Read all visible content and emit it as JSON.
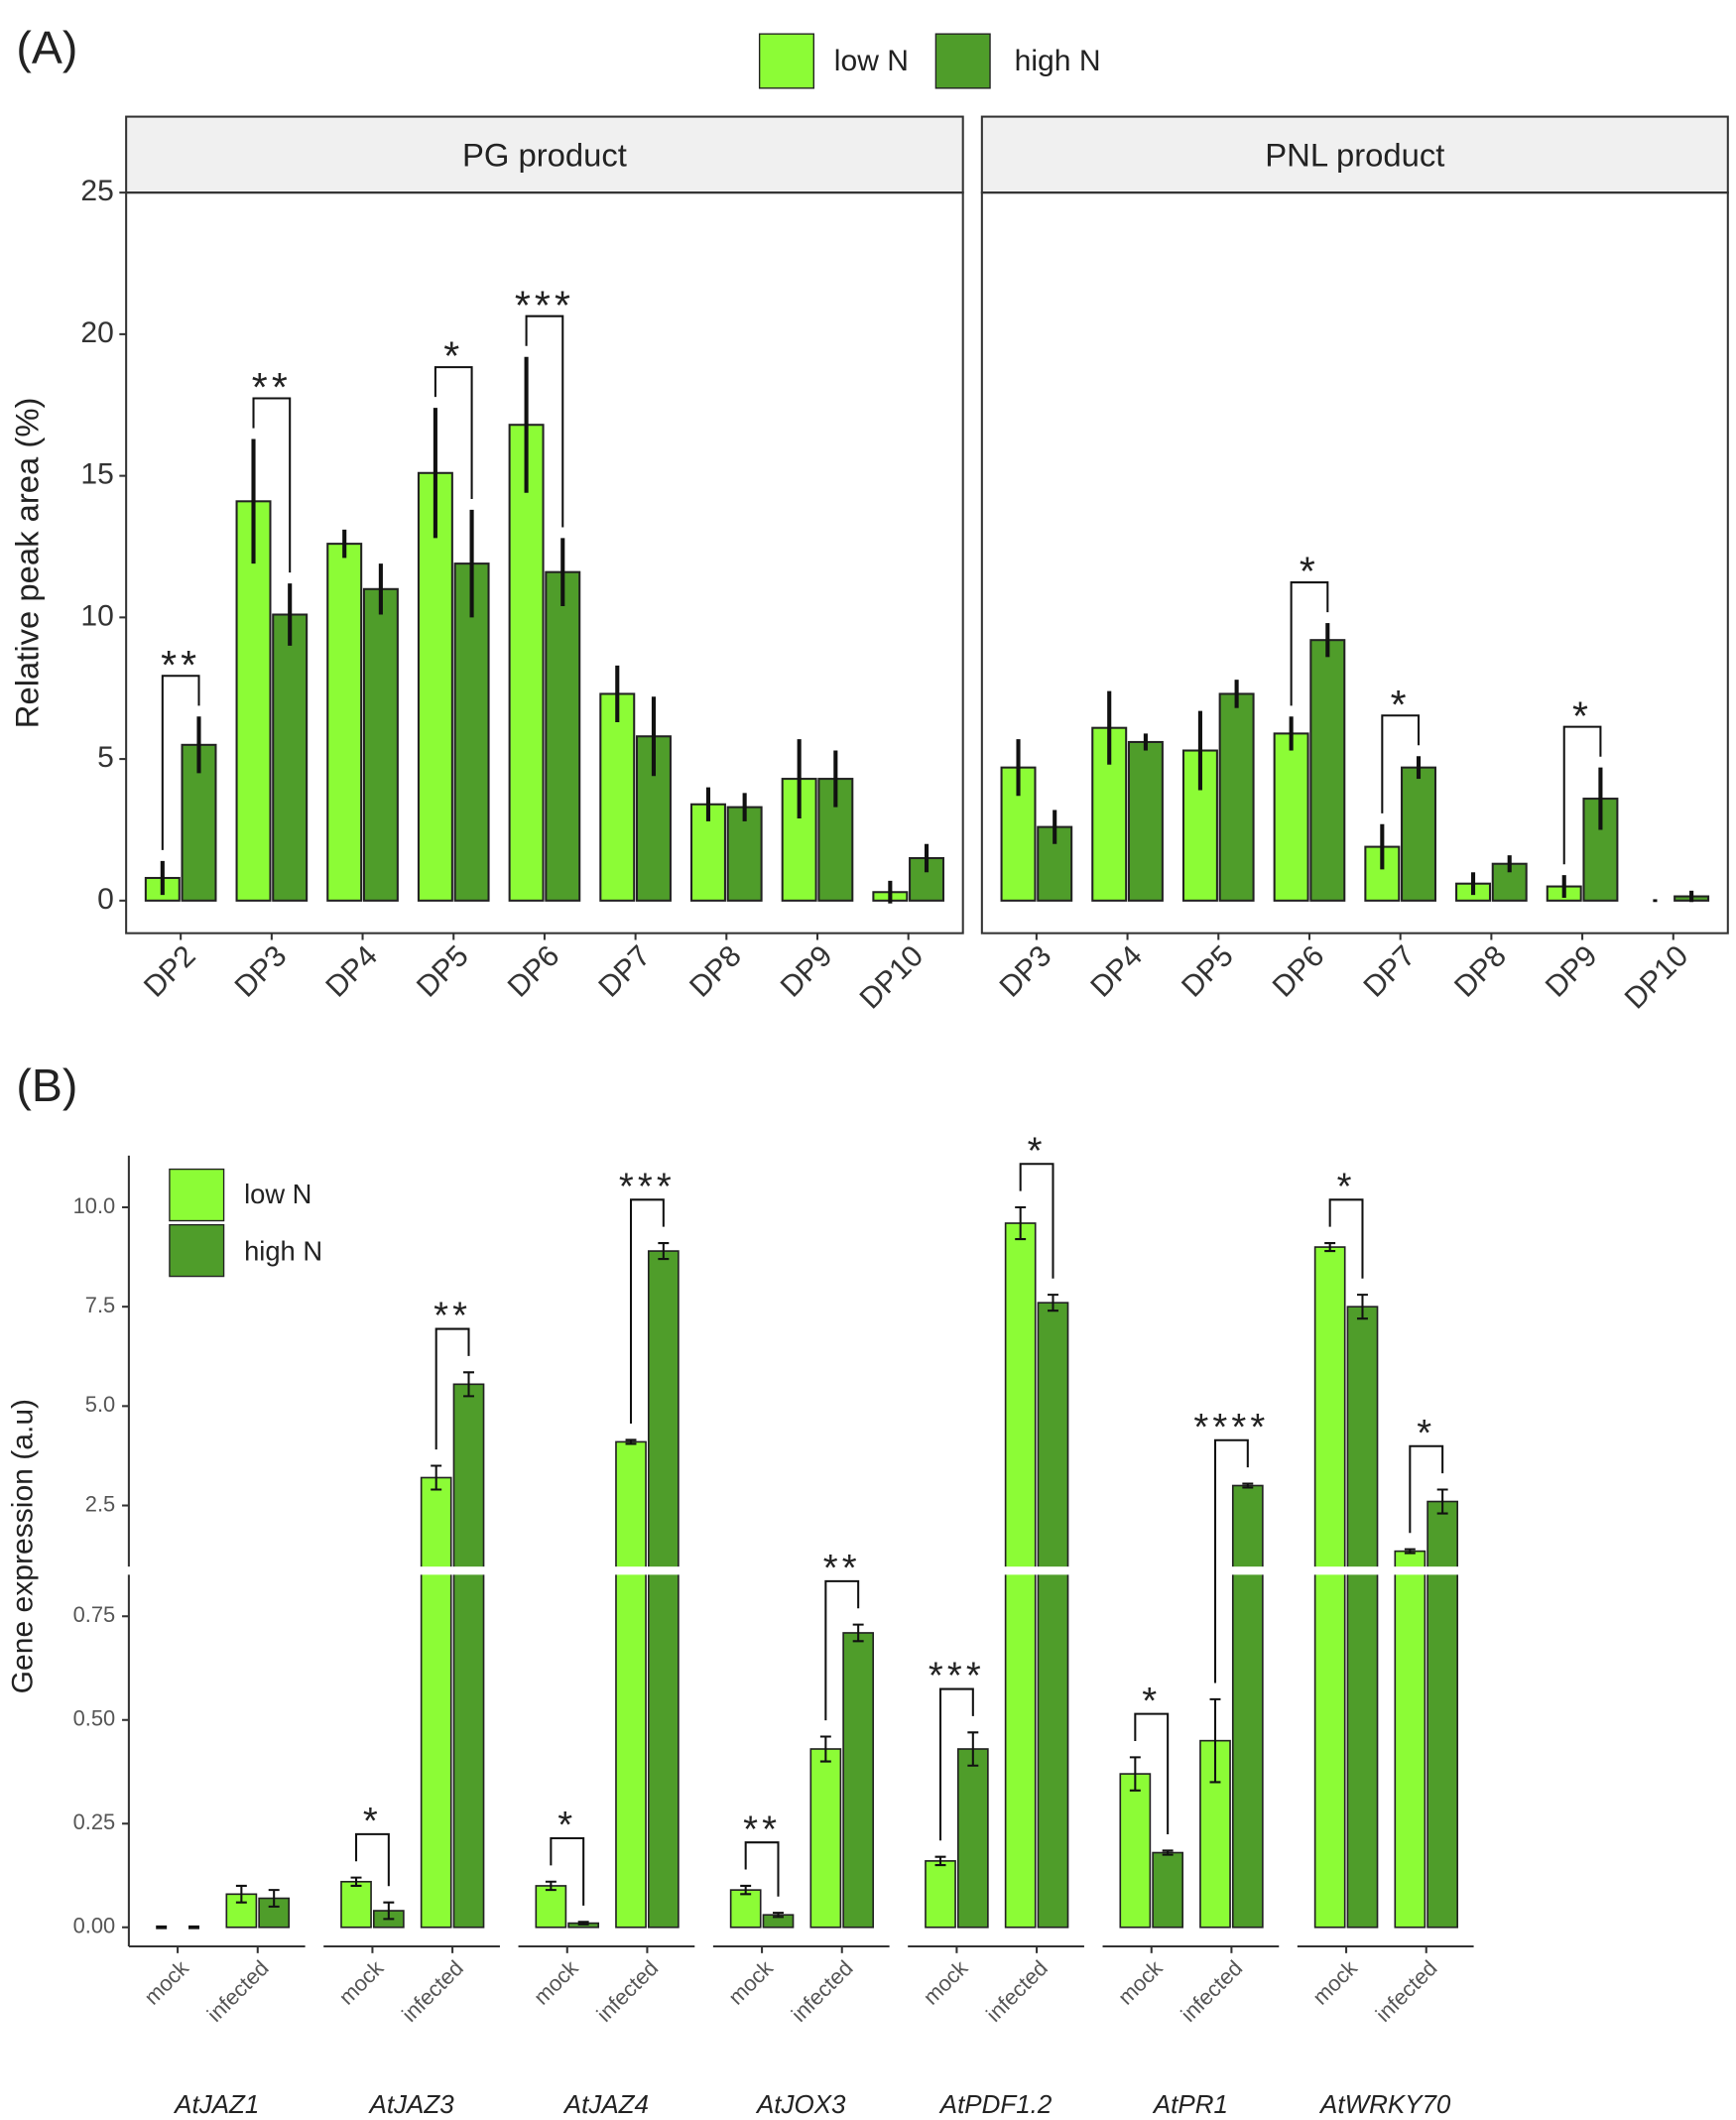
{
  "chart_data": [
    {
      "type": "bar",
      "label": "(A)",
      "facet": "PG product",
      "ylabel": "Relative peak area (%)",
      "categories": [
        "DP2",
        "DP3",
        "DP4",
        "DP5",
        "DP6",
        "DP7",
        "DP8",
        "DP9",
        "DP10"
      ],
      "series": [
        {
          "name": "low N",
          "color": "#8cfc36",
          "values": [
            0.8,
            14.1,
            12.6,
            15.1,
            16.8,
            7.3,
            3.4,
            4.3,
            0.3
          ],
          "errors": [
            0.6,
            2.2,
            0.5,
            2.3,
            2.4,
            1.0,
            0.6,
            1.4,
            0.4
          ]
        },
        {
          "name": "high N",
          "color": "#4f9d2a",
          "values": [
            5.5,
            10.1,
            11.0,
            11.9,
            11.6,
            5.8,
            3.3,
            4.3,
            1.5
          ],
          "errors": [
            1.0,
            1.1,
            0.9,
            1.9,
            1.2,
            1.4,
            0.5,
            1.0,
            0.5
          ]
        }
      ],
      "annotations": [
        {
          "category": "DP2",
          "text": "**"
        },
        {
          "category": "DP3",
          "text": "**"
        },
        {
          "category": "DP5",
          "text": "*"
        },
        {
          "category": "DP6",
          "text": "***"
        }
      ],
      "ylim": [
        -1.15,
        25
      ],
      "yticks": [
        0,
        5,
        10,
        15,
        20,
        25
      ]
    },
    {
      "type": "bar",
      "facet": "PNL product",
      "categories": [
        "DP3",
        "DP4",
        "DP5",
        "DP6",
        "DP7",
        "DP8",
        "DP9",
        "DP10"
      ],
      "series": [
        {
          "color": "#8cfc36",
          "values": [
            4.7,
            6.1,
            5.3,
            5.9,
            1.9,
            0.6,
            0.5,
            0.0
          ],
          "errors": [
            1.0,
            1.3,
            1.4,
            0.6,
            0.8,
            0.4,
            0.4,
            0.05
          ]
        },
        {
          "color": "#4f9d2a",
          "values": [
            2.6,
            5.6,
            7.3,
            9.2,
            4.7,
            1.3,
            3.6,
            0.15
          ],
          "errors": [
            0.6,
            0.3,
            0.5,
            0.6,
            0.4,
            0.3,
            1.1,
            0.2
          ]
        }
      ],
      "annotations": [
        {
          "category": "DP6",
          "text": "*"
        },
        {
          "category": "DP7",
          "text": "*"
        },
        {
          "category": "DP9",
          "text": "*"
        }
      ],
      "ylim": [
        -1.15,
        25
      ]
    },
    {
      "type": "broken_bar",
      "label": "(B)",
      "ylabel": "Gene expression (a.u)",
      "groups": [
        "AtJAZ1",
        "AtJAZ3",
        "AtJAZ4",
        "AtJOX3",
        "AtPDF1.2",
        "AtPR1",
        "AtWRKY70"
      ],
      "conditions": [
        "mock",
        "infected"
      ],
      "series": [
        {
          "name": "low N",
          "color": "#8cfc36",
          "values": [
            0.0,
            0.08,
            0.11,
            3.2,
            0.1,
            4.1,
            0.09,
            0.43,
            0.16,
            9.6,
            0.37,
            0.45,
            9.0,
            1.35
          ],
          "errors": [
            0.002,
            0.02,
            0.01,
            0.3,
            0.01,
            0.05,
            0.01,
            0.03,
            0.01,
            0.4,
            0.04,
            0.1,
            0.1,
            0.05
          ]
        },
        {
          "name": "high N",
          "color": "#4f9d2a",
          "values": [
            0.0,
            0.07,
            0.04,
            5.55,
            0.01,
            8.9,
            0.03,
            0.71,
            0.43,
            7.6,
            0.18,
            3.0,
            7.5,
            2.6
          ],
          "errors": [
            0.002,
            0.02,
            0.02,
            0.3,
            0.003,
            0.2,
            0.005,
            0.02,
            0.04,
            0.2,
            0.005,
            0.05,
            0.3,
            0.3
          ]
        }
      ],
      "annotations": [
        {
          "group": "AtJAZ3",
          "condition": "mock",
          "text": "*"
        },
        {
          "group": "AtJAZ3",
          "condition": "infected",
          "text": "**"
        },
        {
          "group": "AtJAZ4",
          "condition": "mock",
          "text": "*"
        },
        {
          "group": "AtJAZ4",
          "condition": "infected",
          "text": "***"
        },
        {
          "group": "AtJOX3",
          "condition": "mock",
          "text": "**"
        },
        {
          "group": "AtJOX3",
          "condition": "infected",
          "text": "**"
        },
        {
          "group": "AtPDF1.2",
          "condition": "mock",
          "text": "***"
        },
        {
          "group": "AtPDF1.2",
          "condition": "infected",
          "text": "*"
        },
        {
          "group": "AtPR1",
          "condition": "mock",
          "text": "*"
        },
        {
          "group": "AtPR1",
          "condition": "infected",
          "text": "****"
        },
        {
          "group": "AtWRKY70",
          "condition": "mock",
          "text": "*"
        },
        {
          "group": "AtWRKY70",
          "condition": "infected",
          "text": "*"
        }
      ],
      "y_segments": [
        {
          "ylim": [
            -0.046,
            0.86
          ],
          "yticks": [
            {
              "value": 0,
              "label": "0.00"
            },
            {
              "value": 0.25,
              "label": "0.25"
            },
            {
              "value": 0.5,
              "label": "0.50"
            },
            {
              "value": 0.75,
              "label": "0.75"
            }
          ]
        },
        {
          "ylim": [
            0.86,
            11.3
          ],
          "yticks": [
            2.5,
            {
              "value": 5,
              "label": "5.0"
            },
            {
              "value": 7.5,
              "label": "7.5"
            },
            {
              "value": 10,
              "label": "10.0"
            }
          ]
        }
      ]
    }
  ]
}
